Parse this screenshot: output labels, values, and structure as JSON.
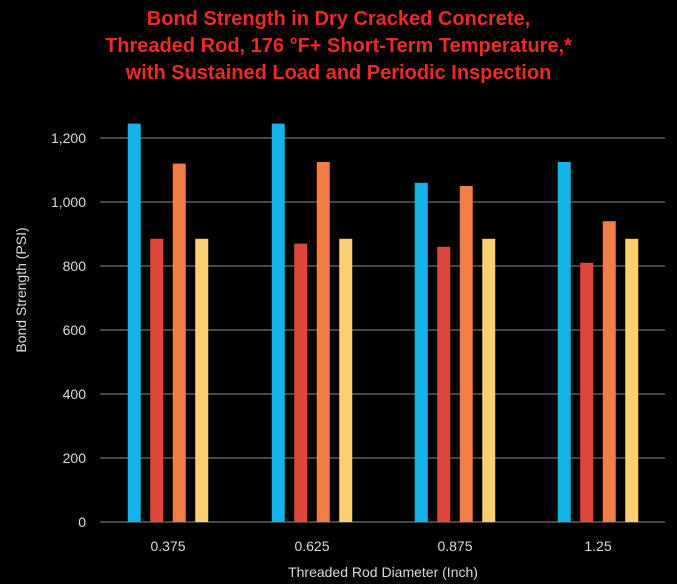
{
  "chart_data": {
    "type": "bar",
    "title_lines": [
      "Bond Strength in Dry Cracked Concrete,",
      "Threaded Rod, 176 °F+ Short-Term Temperature,*",
      "with Sustained Load and Periodic Inspection"
    ],
    "xlabel": "Threaded Rod Diameter (Inch)",
    "ylabel": "Bond Strength (PSI)",
    "categories": [
      "0.375",
      "0.625",
      "0.875",
      "1.25"
    ],
    "ylim": [
      0,
      1200
    ],
    "yticks": [
      0,
      200,
      400,
      600,
      800,
      1000,
      1200
    ],
    "ytick_labels": [
      "0",
      "200",
      "400",
      "600",
      "800",
      "1,000",
      "1,200"
    ],
    "grid": true,
    "series": [
      {
        "color": "#14b4e8",
        "values": [
          1245,
          1245,
          1060,
          1125
        ]
      },
      {
        "color": "#e0473b",
        "values": [
          885,
          870,
          860,
          810
        ]
      },
      {
        "color": "#f27d46",
        "values": [
          1120,
          1125,
          1050,
          940
        ]
      },
      {
        "color": "#fcd071",
        "values": [
          885,
          885,
          885,
          885
        ]
      }
    ]
  }
}
